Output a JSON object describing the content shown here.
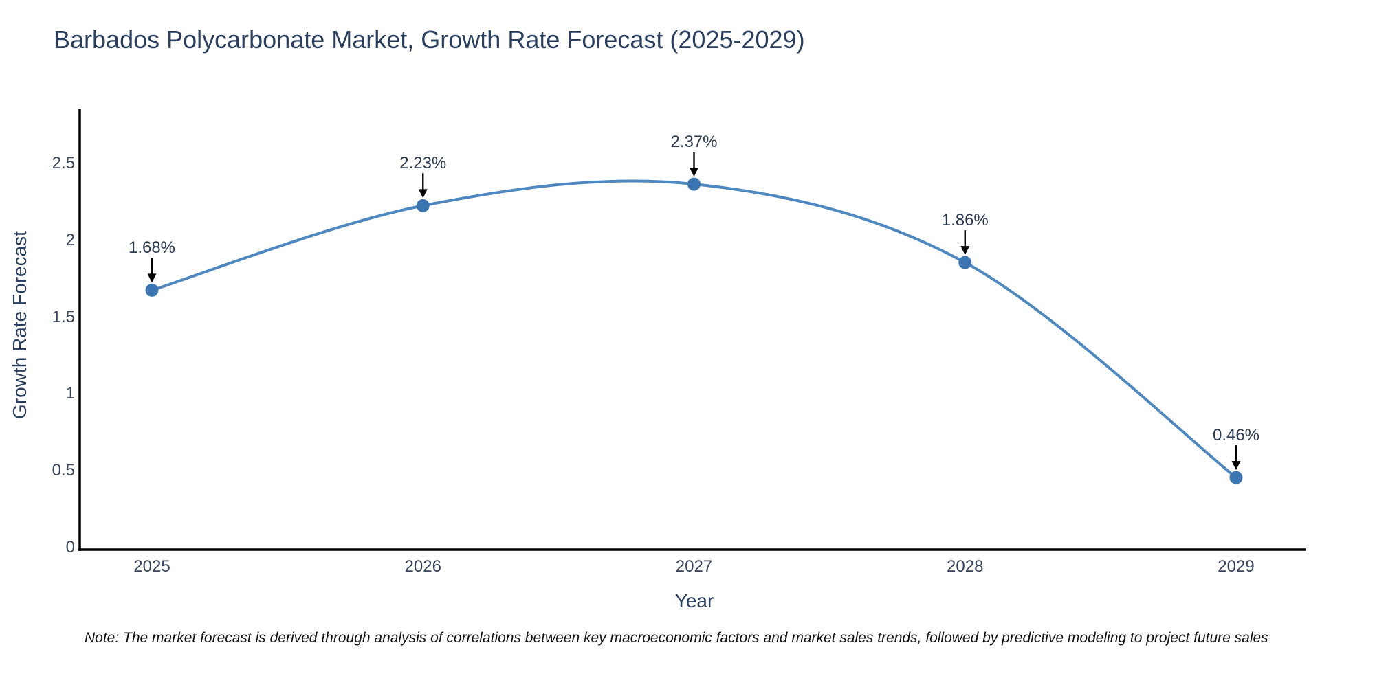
{
  "title": "Barbados Polycarbonate Market, Growth Rate Forecast (2025-2029)",
  "chart_data": {
    "type": "line",
    "title": "Barbados Polycarbonate Market, Growth Rate Forecast (2025-2029)",
    "xlabel": "Year",
    "ylabel": "Growth Rate Forecast",
    "categories": [
      "2025",
      "2026",
      "2027",
      "2028",
      "2029"
    ],
    "values": [
      1.68,
      2.23,
      2.37,
      1.86,
      0.46
    ],
    "point_labels": [
      "1.68%",
      "2.23%",
      "2.37%",
      "1.86%",
      "0.46%"
    ],
    "y_tick_values": [
      0,
      0.5,
      1,
      1.5,
      2,
      2.5
    ],
    "y_tick_labels": [
      "0",
      "0.5",
      "1",
      "1.5",
      "2",
      "2.5"
    ],
    "ylim": [
      0,
      2.85
    ],
    "line_shape": "spline",
    "grid": false,
    "legend": false,
    "line_color": "#4d88c0",
    "marker_color": "#3b76b3",
    "annotation_arrow_color": "#000000",
    "spine_color": "#000000"
  },
  "note": "Note: The market forecast is derived through analysis of correlations between key macroeconomic factors and market sales trends, followed by predictive modeling to project future sales",
  "colors": {
    "background": "#ffffff",
    "title_text": "#2a3f5f",
    "tick_text": "#39455c"
  }
}
